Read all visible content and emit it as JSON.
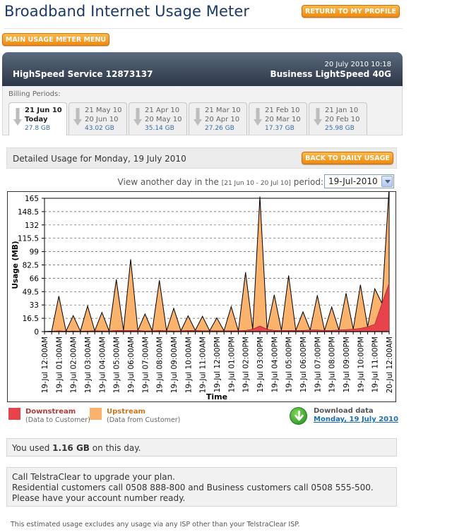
{
  "header": {
    "title": "Broadband Internet Usage Meter",
    "return_profile_label": "RETURN TO MY PROFILE",
    "main_menu_label": "MAIN USAGE METER MENU"
  },
  "service": {
    "name": "HighSpeed Service 12873137",
    "datetime": "20 July 2010 10:18",
    "plan": "Business LightSpeed 40G"
  },
  "billing": {
    "label": "Billing Periods:",
    "periods": [
      {
        "line1": "21 Jun 10",
        "line2": "Today",
        "size": "27.8 GB"
      },
      {
        "line1": "21 May 10",
        "line2": "20 Jun 10",
        "size": "43.02 GB"
      },
      {
        "line1": "21 Apr 10",
        "line2": "20 May 10",
        "size": "35.14 GB"
      },
      {
        "line1": "21 Mar 10",
        "line2": "20 Apr 10",
        "size": "27.26 GB"
      },
      {
        "line1": "21 Feb 10",
        "line2": "20 Mar 10",
        "size": "17.37 GB"
      },
      {
        "line1": "21 Jan 10",
        "line2": "20 Feb 10",
        "size": "25.98 GB"
      }
    ]
  },
  "detail": {
    "title": "Detailed Usage for Monday, 19 July 2010",
    "back_label": "BACK TO DAILY USAGE"
  },
  "view": {
    "prefix": "View another day in the ",
    "period_small": "[21 Jun 10 - 20 Jul 10]",
    "suffix": " period:",
    "selected_day": "19-Jul-2010"
  },
  "legend": {
    "downstream_title": "Downstream",
    "downstream_sub": "(Data to Customer)",
    "upstream_title": "Upstream",
    "upstream_sub": "(Data from Customer)",
    "download_title": "Download data",
    "download_link": "Monday, 19 July 2010"
  },
  "usage": {
    "prefix": "You used ",
    "amount": "1.16 GB",
    "suffix": " on this day."
  },
  "upgrade": {
    "line1": "Call TelstraClear to upgrade your plan.",
    "line2": "Residential customers call 0508 888-800 and Business customers call 0508 555-500.",
    "line3": "Please have your account number ready."
  },
  "footnote": "This estimated usage excludes any usage via any ISP other than your TelstraClear ISP.",
  "colors": {
    "downstream": "#e8434b",
    "upstream": "#fbb36b",
    "accent_orange": "#f39a1c",
    "service_bar": "#3a4556"
  },
  "chart_data": {
    "type": "area",
    "xlabel": "Time",
    "ylabel": "Usage (MB)",
    "ylim": [
      0,
      165
    ],
    "yticks": [
      0,
      16.5,
      33,
      49.5,
      66,
      82.5,
      99,
      115.5,
      132,
      148.5,
      165
    ],
    "grid": true,
    "x": [
      "19-Jul 12:00AM",
      "",
      "19-Jul 01:00AM",
      "",
      "19-Jul 02:00AM",
      "",
      "19-Jul 03:00AM",
      "",
      "19-Jul 04:00AM",
      "",
      "19-Jul 05:00AM",
      "",
      "19-Jul 06:00AM",
      "",
      "19-Jul 07:00AM",
      "",
      "19-Jul 08:00AM",
      "",
      "19-Jul 09:00AM",
      "",
      "19-Jul 10:00AM",
      "",
      "19-Jul 11:00AM",
      "",
      "19-Jul 12:00PM",
      "",
      "19-Jul 01:00PM",
      "",
      "19-Jul 02:00PM",
      "",
      "19-Jul 03:00PM",
      "",
      "19-Jul 04:00PM",
      "",
      "19-Jul 05:00PM",
      "",
      "19-Jul 06:00PM",
      "",
      "19-Jul 07:00PM",
      "",
      "19-Jul 08:00PM",
      "",
      "19-Jul 09:00PM",
      "",
      "19-Jul 10:00PM",
      "",
      "19-Jul 11:00PM",
      "",
      "20-Jul 12:00AM"
    ],
    "series": [
      {
        "name": "Downstream",
        "values": [
          0,
          0.5,
          1,
          0.5,
          0.8,
          0.5,
          0.8,
          1,
          0.8,
          0.8,
          1.5,
          1.5,
          1.5,
          1.5,
          0.8,
          1,
          1.5,
          1,
          0.8,
          1,
          1.5,
          1.5,
          1,
          1,
          1,
          1,
          1,
          1,
          1.5,
          3,
          7,
          3,
          1.5,
          1.5,
          1.5,
          1.5,
          1.5,
          2,
          2,
          1.5,
          1.5,
          2,
          2.5,
          3,
          4,
          6,
          9,
          35,
          60
        ]
      },
      {
        "name": "Upstream",
        "values": [
          0,
          0,
          43,
          0,
          19,
          0,
          31,
          0,
          23,
          0,
          63,
          0,
          88,
          0,
          21,
          0,
          62,
          0,
          28,
          0,
          18,
          0,
          18,
          0,
          16,
          0,
          30,
          0,
          72,
          0,
          160,
          0,
          44,
          0,
          68,
          0,
          23,
          0,
          43,
          0,
          29,
          0,
          45,
          0,
          54,
          0,
          44,
          0,
          119
        ]
      }
    ]
  }
}
